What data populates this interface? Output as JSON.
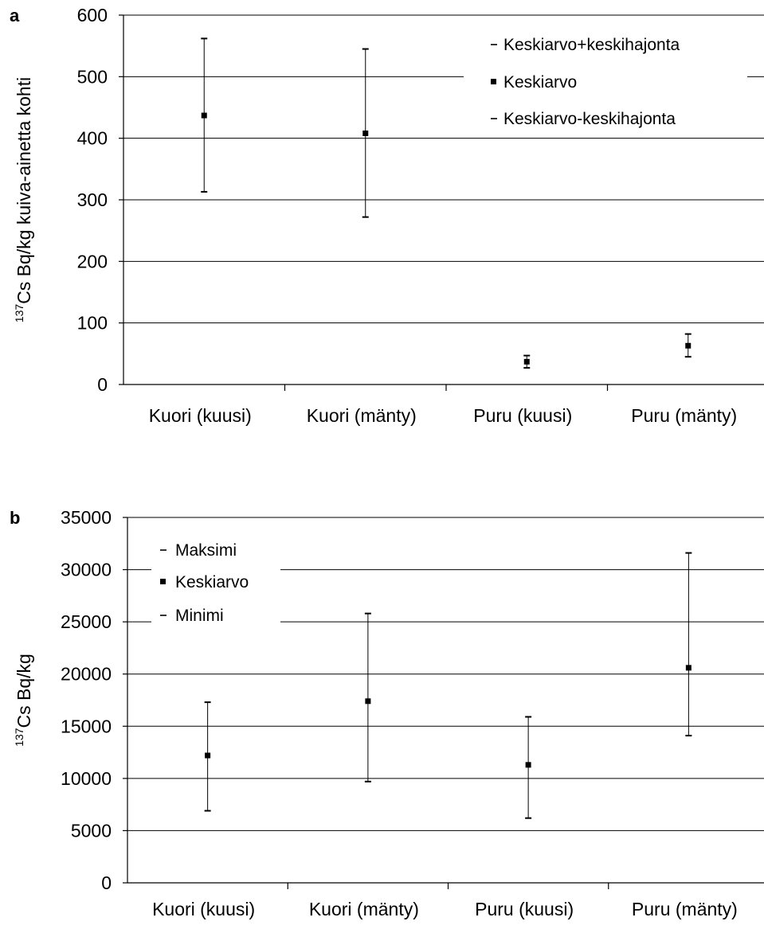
{
  "chart_data": [
    {
      "type": "scatter",
      "panel_label": "a",
      "ylabel_sup": "137",
      "ylabel_main": "Cs Bq/kg kuiva-ainetta kohti",
      "categories": [
        "Kuori (kuusi)",
        "Kuori (mänty)",
        "Puru (kuusi)",
        "Puru (mänty)"
      ],
      "ylim": [
        0,
        600
      ],
      "yticks": [
        0,
        100,
        200,
        300,
        400,
        500,
        600
      ],
      "grid": true,
      "legend_position": "top-right",
      "legend": [
        {
          "marker": "-",
          "label": "Keskiarvo+keskihajonta"
        },
        {
          "marker": "▪",
          "label": "Keskiarvo"
        },
        {
          "marker": "-",
          "label": "Keskiarvo-keskihajonta"
        }
      ],
      "series": [
        {
          "name": "Keskiarvo+keskihajonta",
          "values": [
            562,
            545,
            47,
            82
          ]
        },
        {
          "name": "Keskiarvo",
          "values": [
            437,
            408,
            37,
            63
          ]
        },
        {
          "name": "Keskiarvo-keskihajonta",
          "values": [
            313,
            272,
            27,
            45
          ]
        }
      ]
    },
    {
      "type": "scatter",
      "panel_label": "b",
      "ylabel_sup": "137",
      "ylabel_main": "Cs Bq/kg",
      "categories": [
        "Kuori (kuusi)",
        "Kuori (mänty)",
        "Puru (kuusi)",
        "Puru (mänty)"
      ],
      "ylim": [
        0,
        35000
      ],
      "yticks": [
        0,
        5000,
        10000,
        15000,
        20000,
        25000,
        30000,
        35000
      ],
      "grid": true,
      "legend_position": "top-left",
      "legend": [
        {
          "marker": "-",
          "label": "Maksimi"
        },
        {
          "marker": "▪",
          "label": "Keskiarvo"
        },
        {
          "marker": "-",
          "label": "Minimi"
        }
      ],
      "series": [
        {
          "name": "Maksimi",
          "values": [
            17300,
            25800,
            15900,
            31600
          ]
        },
        {
          "name": "Keskiarvo",
          "values": [
            12200,
            17400,
            11300,
            20600
          ]
        },
        {
          "name": "Minimi",
          "values": [
            6900,
            9700,
            6200,
            14100
          ]
        }
      ]
    }
  ]
}
